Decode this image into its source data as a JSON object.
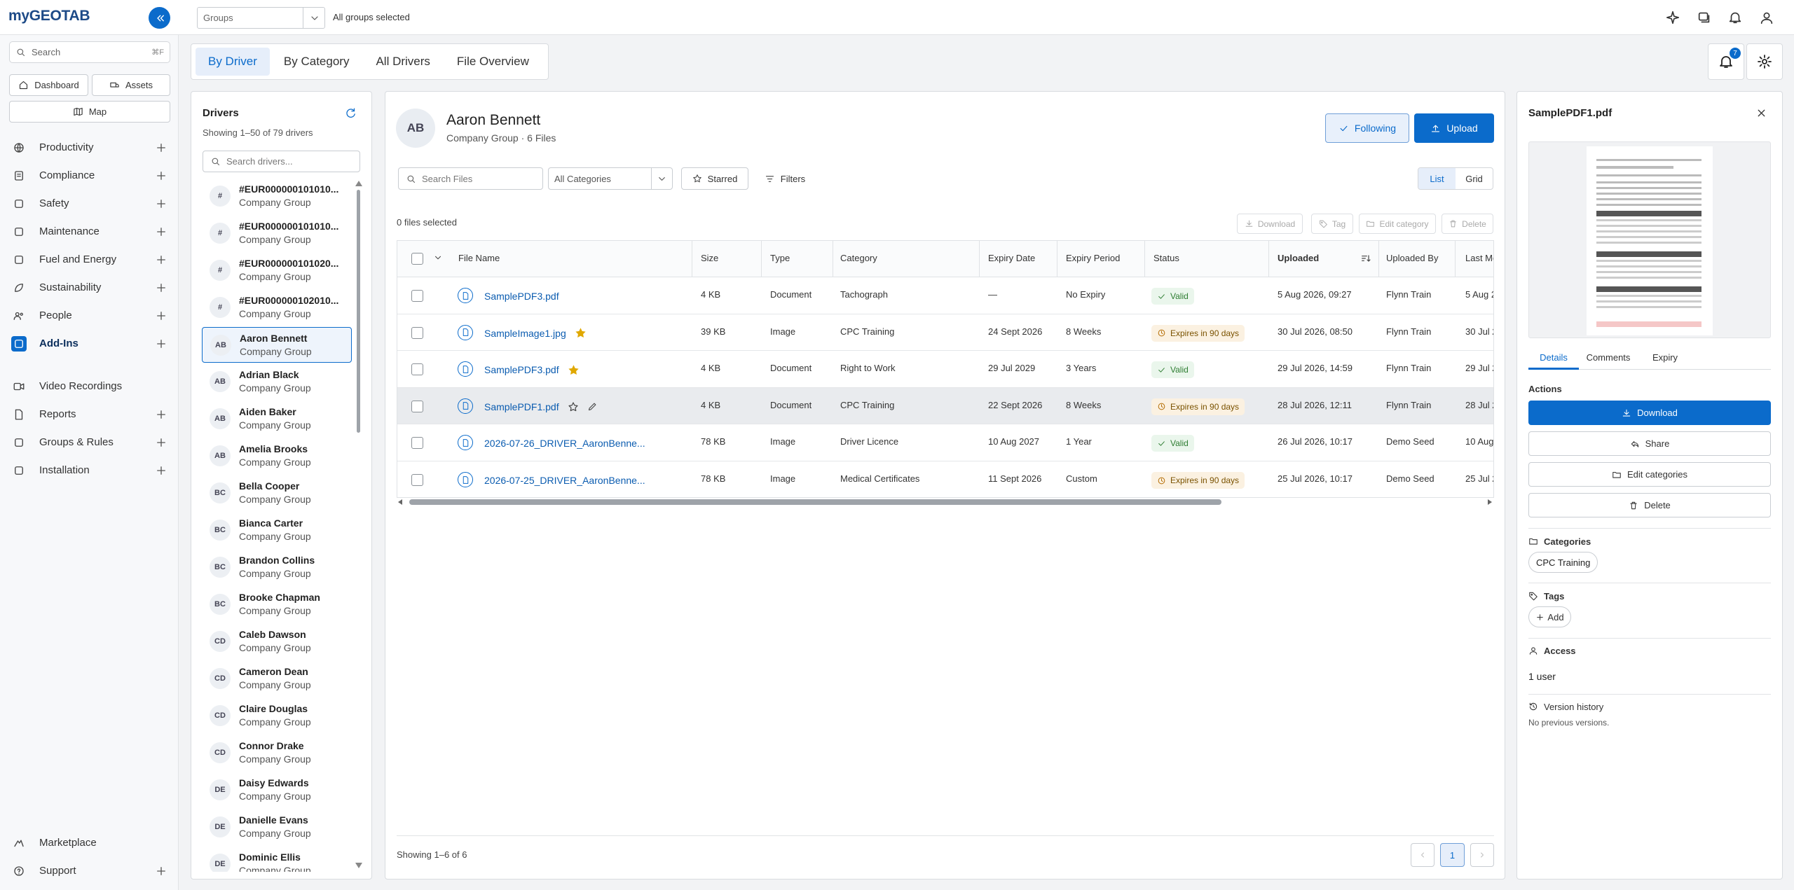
{
  "header": {
    "logo": "myGEOTAB",
    "groups_placeholder": "Groups",
    "groups_summary": "All groups selected"
  },
  "sidebar": {
    "search": "Search",
    "search_shortcut": "⌘F",
    "quick": [
      "Dashboard",
      "Assets",
      "Map"
    ],
    "nav": [
      [
        {
          "label": "Productivity",
          "expandable": true
        },
        {
          "label": "Compliance",
          "expandable": true
        },
        {
          "label": "Safety",
          "expandable": true
        },
        {
          "label": "Maintenance",
          "expandable": true
        },
        {
          "label": "Fuel and Energy",
          "expandable": true
        },
        {
          "label": "Sustainability",
          "expandable": true
        },
        {
          "label": "People",
          "expandable": true
        },
        {
          "label": "Add-Ins",
          "expandable": true,
          "active": true
        }
      ],
      [
        {
          "label": "Video Recordings",
          "expandable": false
        },
        {
          "label": "Reports",
          "expandable": true
        },
        {
          "label": "Groups & Rules",
          "expandable": true
        },
        {
          "label": "Installation",
          "expandable": true
        }
      ]
    ],
    "footer": [
      {
        "label": "Marketplace",
        "expandable": false
      },
      {
        "label": "Support",
        "expandable": true
      }
    ]
  },
  "tabs": {
    "items": [
      "By Driver",
      "By Category",
      "All Drivers",
      "File Overview"
    ],
    "active": 0
  },
  "notifications": 7,
  "drivers": {
    "title": "Drivers",
    "subtitle": "Showing 1–50 of 79 drivers",
    "search": "Search drivers...",
    "items": [
      {
        "initials": "#",
        "name": "#EUR000000101010...",
        "group": "Company Group"
      },
      {
        "initials": "#",
        "name": "#EUR000000101010...",
        "group": "Company Group"
      },
      {
        "initials": "#",
        "name": "#EUR000000101020...",
        "group": "Company Group"
      },
      {
        "initials": "#",
        "name": "#EUR000000102010...",
        "group": "Company Group"
      },
      {
        "initials": "AB",
        "name": "Aaron Bennett",
        "group": "Company Group",
        "selected": true
      },
      {
        "initials": "AB",
        "name": "Adrian Black",
        "group": "Company Group"
      },
      {
        "initials": "AB",
        "name": "Aiden Baker",
        "group": "Company Group"
      },
      {
        "initials": "AB",
        "name": "Amelia Brooks",
        "group": "Company Group"
      },
      {
        "initials": "BC",
        "name": "Bella Cooper",
        "group": "Company Group"
      },
      {
        "initials": "BC",
        "name": "Bianca Carter",
        "group": "Company Group"
      },
      {
        "initials": "BC",
        "name": "Brandon Collins",
        "group": "Company Group"
      },
      {
        "initials": "BC",
        "name": "Brooke Chapman",
        "group": "Company Group"
      },
      {
        "initials": "CD",
        "name": "Caleb Dawson",
        "group": "Company Group"
      },
      {
        "initials": "CD",
        "name": "Cameron Dean",
        "group": "Company Group"
      },
      {
        "initials": "CD",
        "name": "Claire Douglas",
        "group": "Company Group"
      },
      {
        "initials": "CD",
        "name": "Connor Drake",
        "group": "Company Group"
      },
      {
        "initials": "DE",
        "name": "Daisy Edwards",
        "group": "Company Group"
      },
      {
        "initials": "DE",
        "name": "Danielle Evans",
        "group": "Company Group"
      },
      {
        "initials": "DE",
        "name": "Dominic Ellis",
        "group": "Company Group"
      }
    ]
  },
  "driver": {
    "initials": "AB",
    "name": "Aaron Bennett",
    "subtitle": "Company Group · 6 Files",
    "following": "Following",
    "upload": "Upload"
  },
  "toolbar": {
    "search": "Search Files",
    "category": "All Categories",
    "starred": "Starred",
    "filters": "Filters",
    "views": [
      "List",
      "Grid"
    ],
    "active_view": 0
  },
  "selection": {
    "text": "0 files selected",
    "actions": [
      "Download",
      "Tag",
      "Edit category",
      "Delete"
    ]
  },
  "table": {
    "columns": [
      "File Name",
      "Size",
      "Type",
      "Category",
      "Expiry Date",
      "Expiry Period",
      "Status",
      "Uploaded",
      "Uploaded By",
      "Last Mo"
    ],
    "sorted_column": 7,
    "rows": [
      {
        "name": "SamplePDF3.pdf",
        "starred": false,
        "size": "4 KB",
        "type": "Document",
        "category": "Tachograph",
        "expiry_date": "—",
        "expiry_period": "No Expiry",
        "status": "Valid",
        "status_level": "ok",
        "uploaded": "5 Aug 2026, 09:27",
        "uploaded_by": "Flynn Train",
        "last_modified": "5 Aug 2"
      },
      {
        "name": "SampleImage1.jpg",
        "starred": true,
        "size": "39 KB",
        "type": "Image",
        "category": "CPC Training",
        "expiry_date": "24 Sept 2026",
        "expiry_period": "8 Weeks",
        "status": "Expires in 90 days",
        "status_level": "warning",
        "uploaded": "30 Jul 2026, 08:50",
        "uploaded_by": "Flynn Train",
        "last_modified": "30 Jul 2"
      },
      {
        "name": "SamplePDF3.pdf",
        "starred": true,
        "size": "4 KB",
        "type": "Document",
        "category": "Right to Work",
        "expiry_date": "29 Jul 2029",
        "expiry_period": "3 Years",
        "status": "Valid",
        "status_level": "ok",
        "uploaded": "29 Jul 2026, 14:59",
        "uploaded_by": "Flynn Train",
        "last_modified": "29 Jul 2"
      },
      {
        "name": "SamplePDF1.pdf",
        "starred": false,
        "hovered": true,
        "size": "4 KB",
        "type": "Document",
        "category": "CPC Training",
        "expiry_date": "22 Sept 2026",
        "expiry_period": "8 Weeks",
        "status": "Expires in 90 days",
        "status_level": "warning",
        "uploaded": "28 Jul 2026, 12:11",
        "uploaded_by": "Flynn Train",
        "last_modified": "28 Jul 2"
      },
      {
        "name": "2026-07-26_DRIVER_AaronBenne...",
        "starred": false,
        "size": "78 KB",
        "type": "Image",
        "category": "Driver Licence",
        "expiry_date": "10 Aug 2027",
        "expiry_period": "1 Year",
        "status": "Valid",
        "status_level": "ok",
        "uploaded": "26 Jul 2026, 10:17",
        "uploaded_by": "Demo Seed",
        "last_modified": "10 Aug"
      },
      {
        "name": "2026-07-25_DRIVER_AaronBenne...",
        "starred": false,
        "size": "78 KB",
        "type": "Image",
        "category": "Medical Certificates",
        "expiry_date": "11 Sept 2026",
        "expiry_period": "Custom",
        "status": "Expires in 90 days",
        "status_level": "warning",
        "uploaded": "25 Jul 2026, 10:17",
        "uploaded_by": "Demo Seed",
        "last_modified": "25 Jul 2"
      }
    ],
    "footer": "Showing 1–6 of 6",
    "page": 1
  },
  "details": {
    "title": "SamplePDF1.pdf",
    "tabs": [
      "Details",
      "Comments",
      "Expiry"
    ],
    "active_tab": 0,
    "actions_title": "Actions",
    "actions": [
      "Download",
      "Share",
      "Edit categories",
      "Delete"
    ],
    "categories_title": "Categories",
    "categories": [
      "CPC Training"
    ],
    "tags_title": "Tags",
    "tags_add": "Add",
    "access_title": "Access",
    "access": "1 user",
    "history_title": "Version history",
    "history": "No previous versions."
  }
}
